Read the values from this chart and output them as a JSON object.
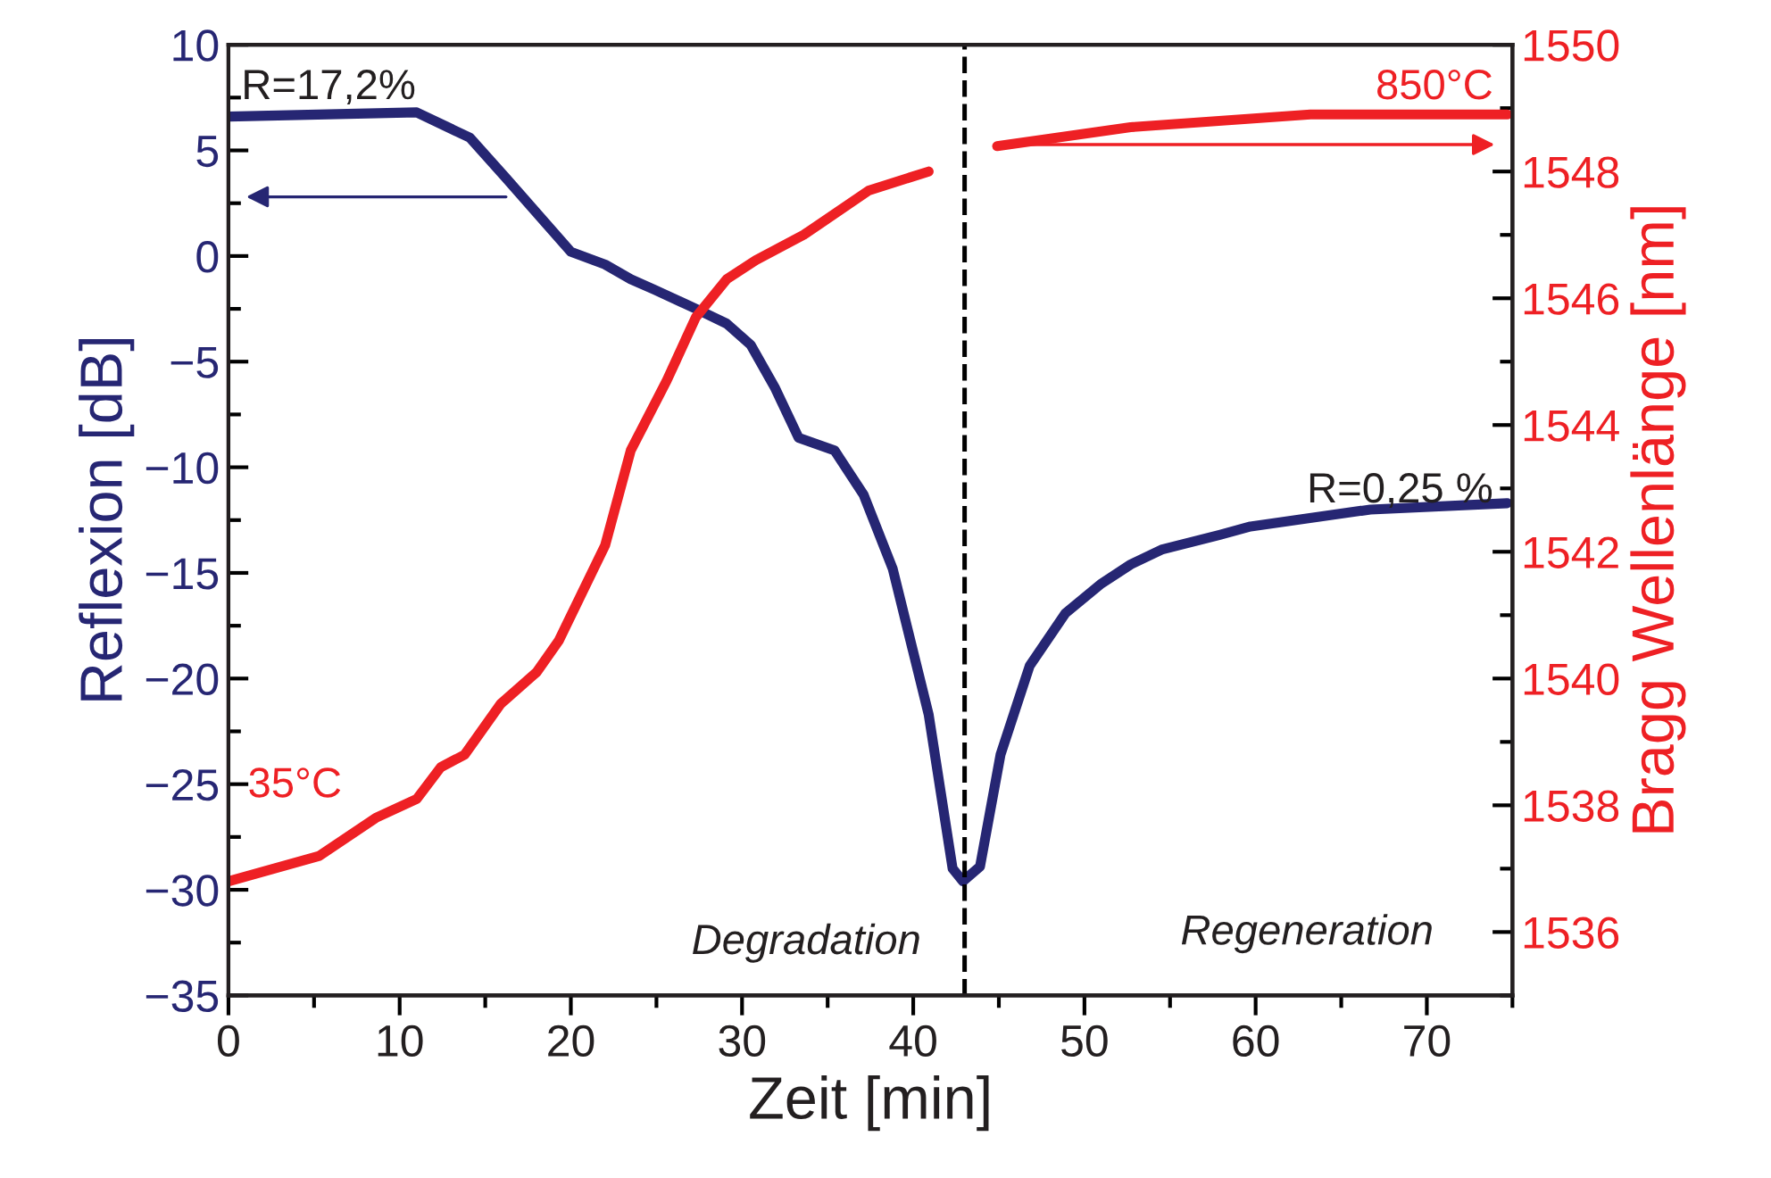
{
  "chart_data": {
    "type": "line",
    "xlabel": "Zeit [min]",
    "ylabel": "Reflexion [dB]",
    "y2label": "Bragg Wellenlänge [nm]",
    "series": [
      {
        "color": "#262673",
        "x": [
          0,
          11.0,
          14.1,
          16.2,
          20.0,
          22.0,
          23.5,
          24.9,
          27.3,
          29.1,
          30.5,
          31.9,
          33.3,
          35.4,
          37.1,
          38.8,
          40.9,
          42.3,
          42.9,
          43.9,
          45.1,
          46.8,
          48.9,
          51.0,
          52.7,
          54.5,
          57.9,
          59.7,
          66.7,
          74.7
        ],
        "values": [
          6.6,
          6.8,
          5.6,
          3.7,
          0.2,
          -0.4,
          -1.1,
          -1.6,
          -2.5,
          -3.2,
          -4.2,
          -6.2,
          -8.6,
          -9.2,
          -11.3,
          -14.8,
          -21.7,
          -29.0,
          -29.6,
          -28.9,
          -23.6,
          -19.4,
          -16.9,
          -15.5,
          -14.6,
          -13.9,
          -13.2,
          -12.8,
          -12.0,
          -11.7
        ]
      },
      {
        "color": "#ee2024",
        "axis": "y2",
        "x": [
          0,
          5.3,
          8.6,
          11.0,
          12.4,
          13.8,
          15.9,
          18.0,
          19.3,
          21.1,
          22.0,
          23.5,
          25.6,
          27.3,
          29.1,
          30.8,
          33.6,
          37.4,
          40.9,
          43.0,
          44.9,
          52.7,
          63.2,
          74.7
        ],
        "values": [
          1536.8,
          1537.2,
          1537.8,
          1538.1,
          1538.6,
          1538.8,
          1539.6,
          1540.1,
          1540.6,
          1541.6,
          1542.1,
          1543.6,
          1544.7,
          1545.7,
          1546.3,
          1546.6,
          1547.0,
          1547.7,
          1548.0,
          null,
          1548.4,
          1548.7,
          1548.9,
          1548.9
        ]
      }
    ],
    "xlim": [
      0,
      75
    ],
    "xticks": [
      0,
      10,
      20,
      30,
      40,
      50,
      60,
      70
    ],
    "ylim": [
      -35,
      10
    ],
    "yticks": [
      -35,
      -30,
      -25,
      -20,
      -15,
      -10,
      -5,
      0,
      5,
      10
    ],
    "y2lim": [
      1535,
      1550
    ],
    "y2ticks": [
      1536,
      1538,
      1540,
      1542,
      1544,
      1546,
      1548,
      1550
    ],
    "ref_lines": [
      {
        "axis": "x",
        "value": 43,
        "color": "#000000",
        "line_style": "dashed"
      }
    ],
    "annotations": [
      "R=17,2%",
      "35°C",
      "850°C",
      "R=0,25 %",
      "Degradation",
      "Regeneration"
    ],
    "grid": false,
    "marker": "none",
    "line_style": "solid"
  }
}
